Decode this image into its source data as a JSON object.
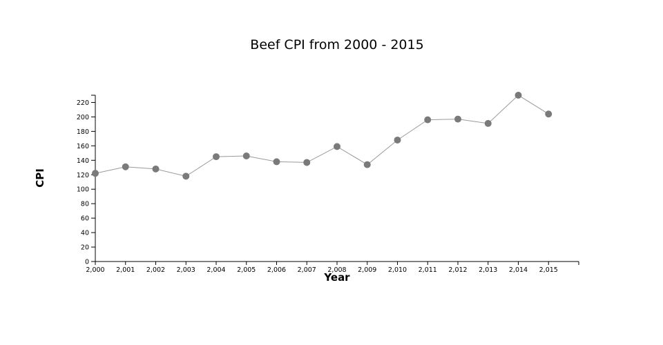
{
  "chart_data": {
    "type": "line",
    "title": "Beef CPI from 2000 - 2015",
    "xlabel": "Year",
    "ylabel": "CPI",
    "x": [
      2000,
      2001,
      2002,
      2003,
      2004,
      2005,
      2006,
      2007,
      2008,
      2009,
      2010,
      2011,
      2012,
      2013,
      2014,
      2015
    ],
    "x_tick_labels": [
      "2,000",
      "2,001",
      "2,002",
      "2,003",
      "2,004",
      "2,005",
      "2,006",
      "2,007",
      "2,008",
      "2,009",
      "2,010",
      "2,011",
      "2,012",
      "2,013",
      "2,014",
      "2,015"
    ],
    "series": [
      {
        "values": [
          122,
          131,
          128,
          118,
          145,
          146,
          138,
          137,
          159,
          134,
          168,
          196,
          197,
          191,
          230,
          204
        ]
      }
    ],
    "xlim": [
      2000,
      2016
    ],
    "ylim": [
      0,
      230
    ],
    "y_ticks": [
      0,
      20,
      40,
      60,
      80,
      100,
      120,
      140,
      160,
      180,
      200,
      220
    ],
    "grid": false,
    "line_color": "#999999",
    "marker_color": "#7a7a7a"
  }
}
